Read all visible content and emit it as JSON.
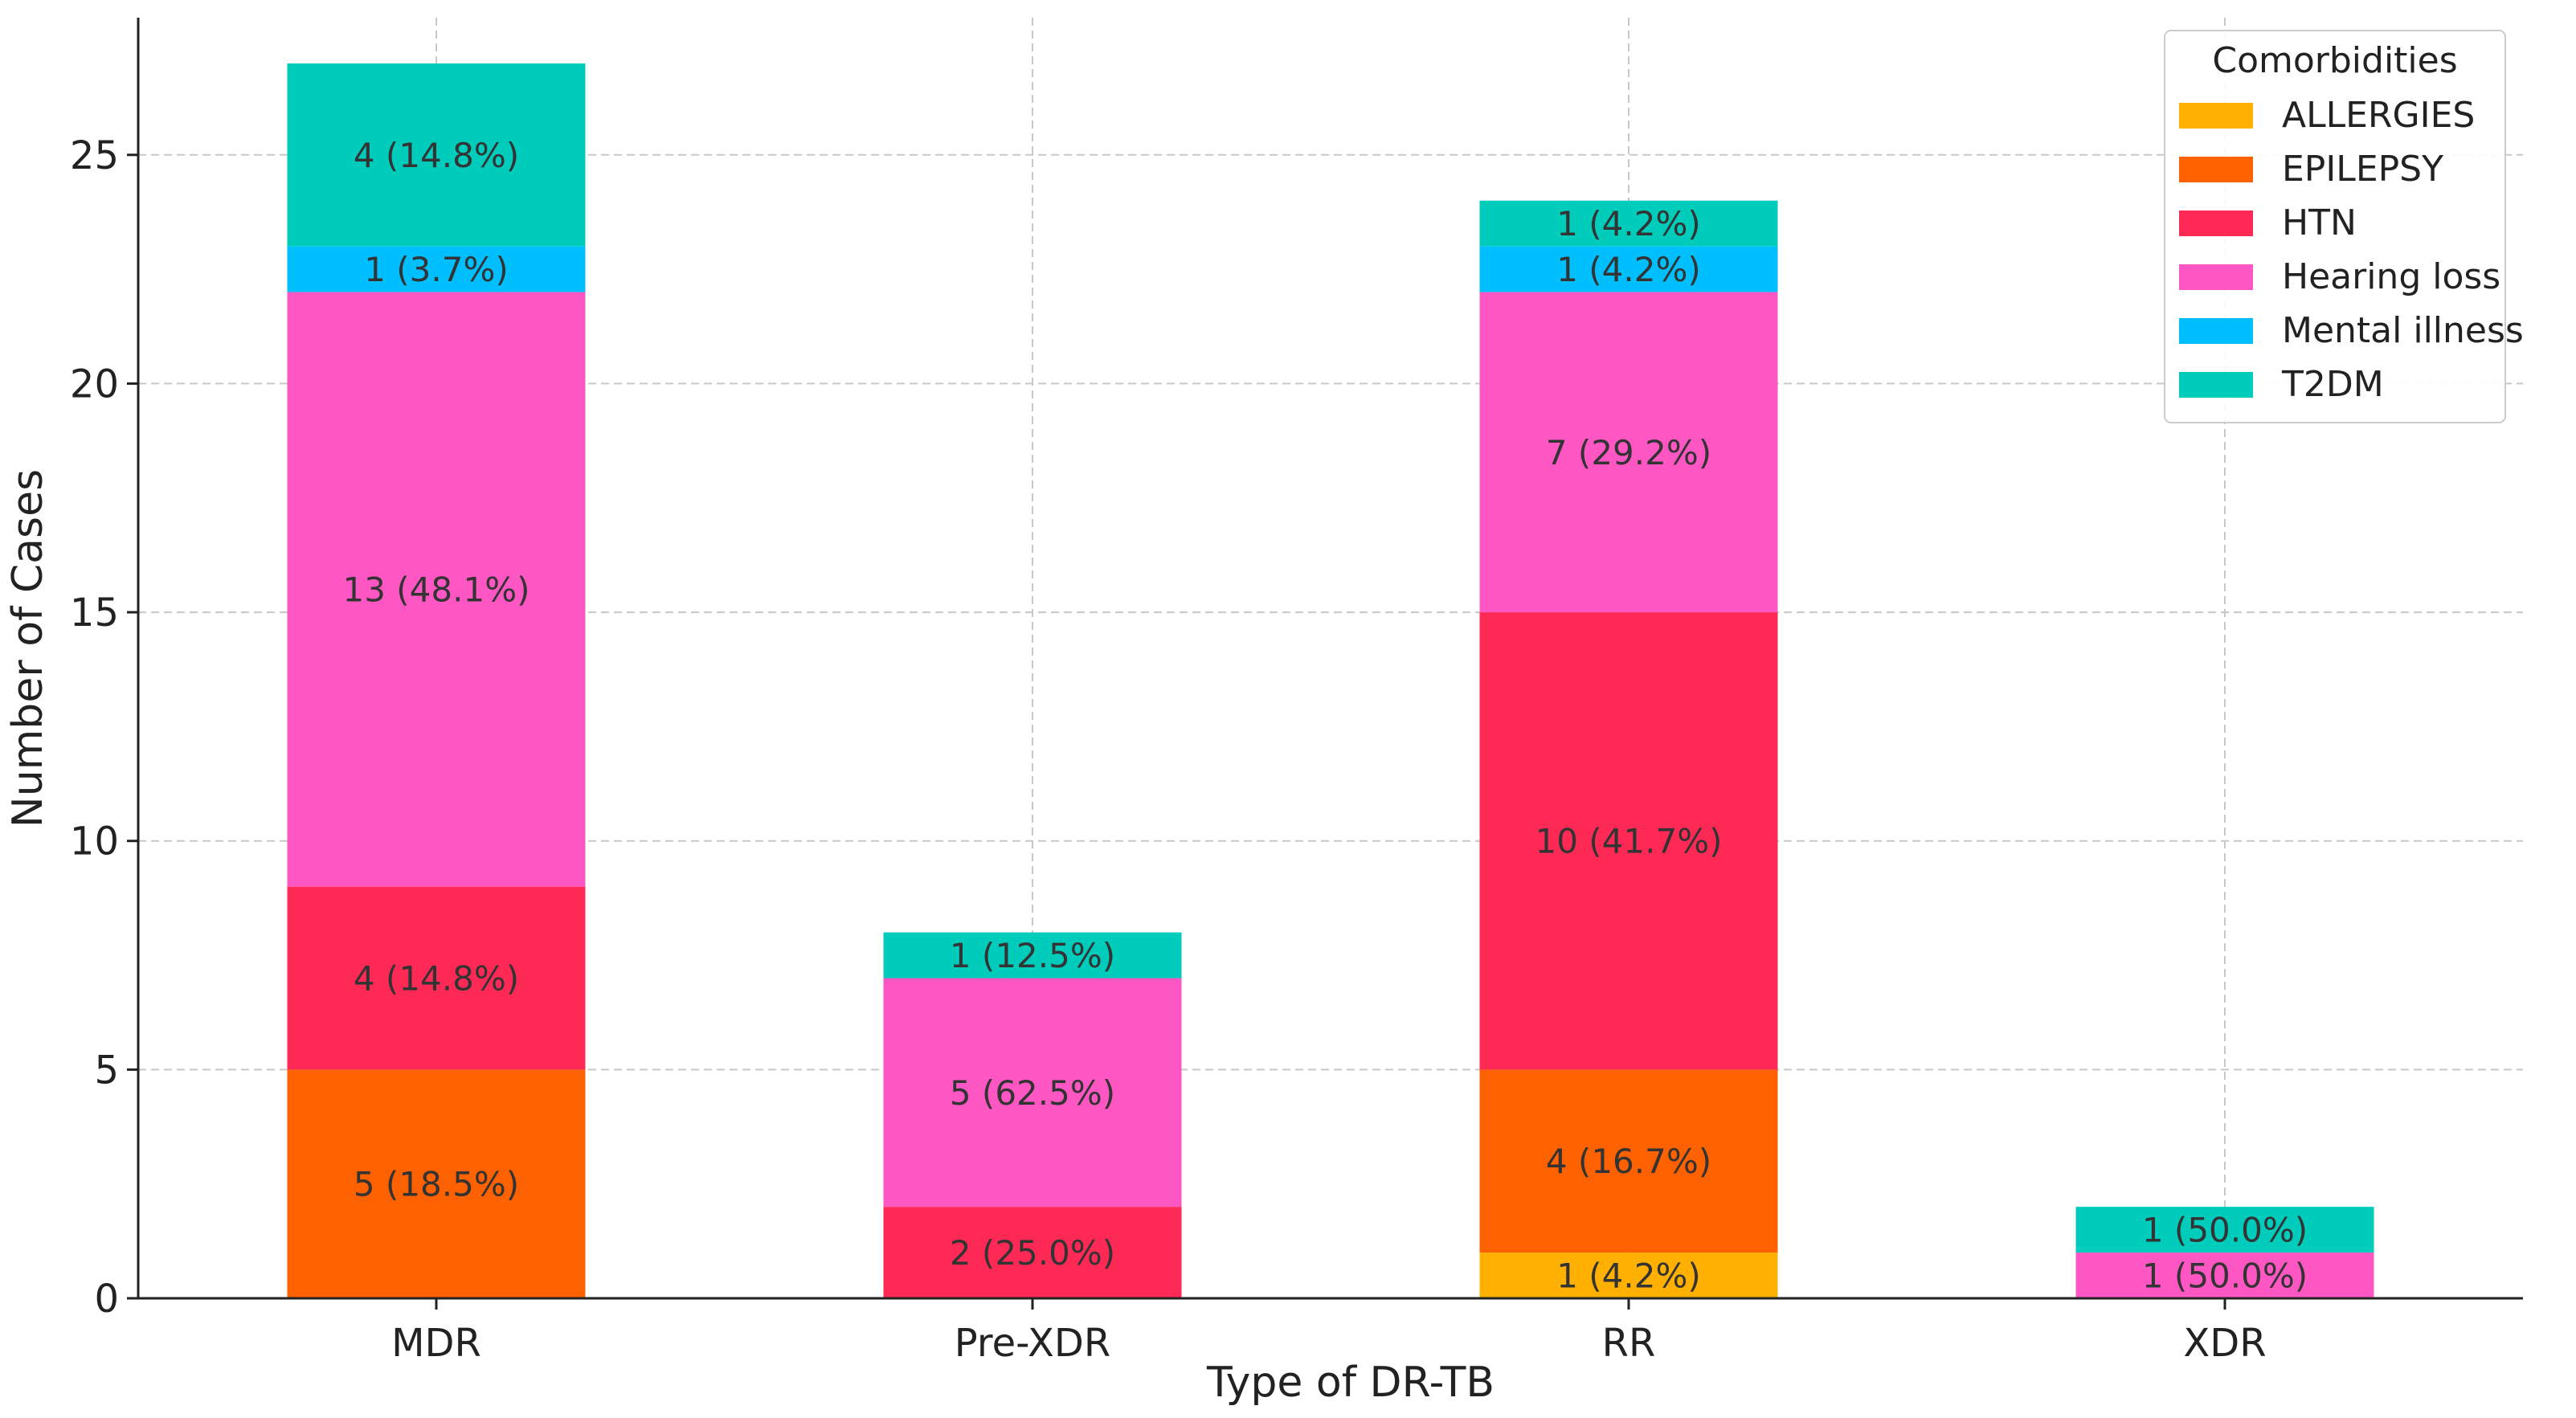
{
  "chart_data": {
    "type": "bar",
    "stacked": true,
    "xlabel": "Type of DR-TB",
    "ylabel": "Number of Cases",
    "title": "",
    "ylim": [
      0,
      28
    ],
    "yticks": [
      0,
      5,
      10,
      15,
      20,
      25
    ],
    "grid": true,
    "categories": [
      "MDR",
      "Pre-XDR",
      "RR",
      "XDR"
    ],
    "legend": {
      "title": "Comorbidities",
      "position": "top-right"
    },
    "series": [
      {
        "name": "ALLERGIES",
        "color": "#FFB000",
        "values": [
          0,
          0,
          1,
          0
        ],
        "labels": [
          "",
          "",
          "1 (4.2%)",
          ""
        ]
      },
      {
        "name": "EPILEPSY",
        "color": "#FE6100",
        "values": [
          5,
          0,
          4,
          0
        ],
        "labels": [
          "5 (18.5%)",
          "",
          "4 (16.7%)",
          ""
        ]
      },
      {
        "name": "HTN",
        "color": "#FE2A55",
        "values": [
          4,
          2,
          10,
          0
        ],
        "labels": [
          "4 (14.8%)",
          "2 (25.0%)",
          "10 (41.7%)",
          ""
        ]
      },
      {
        "name": "Hearing loss",
        "color": "#FE57C3",
        "values": [
          13,
          5,
          7,
          1
        ],
        "labels": [
          "13 (48.1%)",
          "5 (62.5%)",
          "7 (29.2%)",
          "1 (50.0%)"
        ]
      },
      {
        "name": "Mental illness",
        "color": "#00BFFF",
        "values": [
          1,
          0,
          1,
          0
        ],
        "labels": [
          "1 (3.7%)",
          "",
          "1 (4.2%)",
          ""
        ]
      },
      {
        "name": "T2DM",
        "color": "#00CCBC",
        "values": [
          4,
          1,
          1,
          1
        ],
        "labels": [
          "4 (14.8%)",
          "1 (12.5%)",
          "1 (4.2%)",
          "1 (50.0%)"
        ]
      }
    ]
  }
}
